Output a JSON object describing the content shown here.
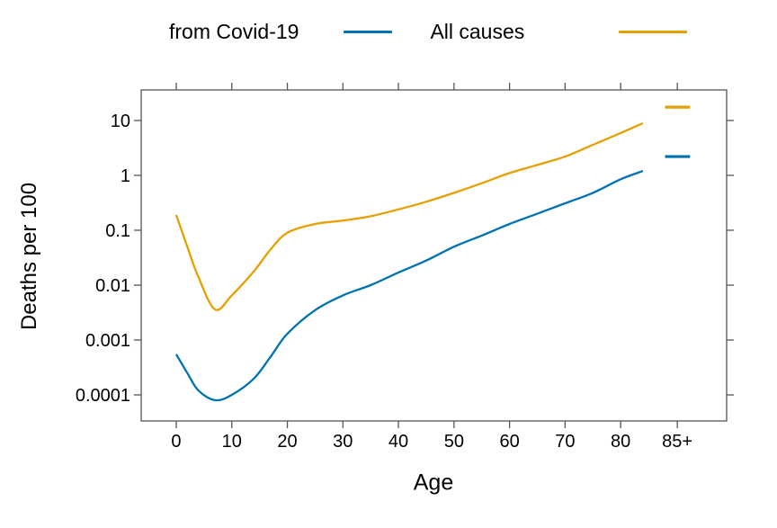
{
  "chart_data": {
    "type": "line",
    "title": "",
    "xlabel": "Age",
    "ylabel": "Deaths per 100",
    "grid": false,
    "legend_position": "top",
    "x_axis": {
      "scale": "linear",
      "range": [
        -6.31,
        99.08
      ],
      "ticks": [
        {
          "pos": 0,
          "label": "0"
        },
        {
          "pos": 10,
          "label": "10"
        },
        {
          "pos": 20,
          "label": "20"
        },
        {
          "pos": 30,
          "label": "30"
        },
        {
          "pos": 40,
          "label": "40"
        },
        {
          "pos": 50,
          "label": "50"
        },
        {
          "pos": 60,
          "label": "60"
        },
        {
          "pos": 70,
          "label": "70"
        },
        {
          "pos": 80,
          "label": "80"
        },
        {
          "pos": 90.2,
          "label": "85+"
        }
      ]
    },
    "y_axis": {
      "scale": "log",
      "range": [
        3.35e-05,
        36
      ],
      "ticks": [
        {
          "pos": 10,
          "label": "10"
        },
        {
          "pos": 1,
          "label": "1"
        },
        {
          "pos": 0.1,
          "label": "0.1"
        },
        {
          "pos": 0.01,
          "label": "0.01"
        },
        {
          "pos": 0.001,
          "label": "0.001"
        },
        {
          "pos": 0.0001,
          "label": "0.0001"
        }
      ]
    },
    "series": [
      {
        "name": "from Covid-19",
        "color": "#0072B2",
        "x": [
          0,
          2,
          4,
          7,
          10,
          14,
          17,
          20,
          25,
          30,
          35,
          40,
          45,
          50,
          55,
          60,
          65,
          70,
          75,
          80,
          84
        ],
        "y": [
          0.00055,
          0.00025,
          0.00012,
          8e-05,
          0.0001,
          0.0002,
          0.0005,
          0.0013,
          0.0035,
          0.0065,
          0.01,
          0.017,
          0.028,
          0.05,
          0.08,
          0.13,
          0.2,
          0.31,
          0.48,
          0.85,
          1.2
        ],
        "open_ended_category": {
          "label": "85+",
          "x_span": [
            88,
            92.5
          ],
          "value": 2.2
        }
      },
      {
        "name": "All causes",
        "color": "#E69F00",
        "x": [
          0,
          2,
          4,
          7,
          10,
          14,
          17,
          20,
          25,
          30,
          35,
          40,
          45,
          50,
          55,
          60,
          65,
          70,
          75,
          80,
          84
        ],
        "y": [
          0.19,
          0.05,
          0.014,
          0.0036,
          0.0065,
          0.018,
          0.045,
          0.09,
          0.13,
          0.15,
          0.18,
          0.24,
          0.33,
          0.48,
          0.72,
          1.1,
          1.55,
          2.2,
          3.6,
          5.9,
          8.9
        ],
        "open_ended_category": {
          "label": "85+",
          "x_span": [
            88,
            92.5
          ],
          "value": 17.5
        }
      }
    ],
    "axis_color": "#555555",
    "tick_label_color": "#000000"
  }
}
